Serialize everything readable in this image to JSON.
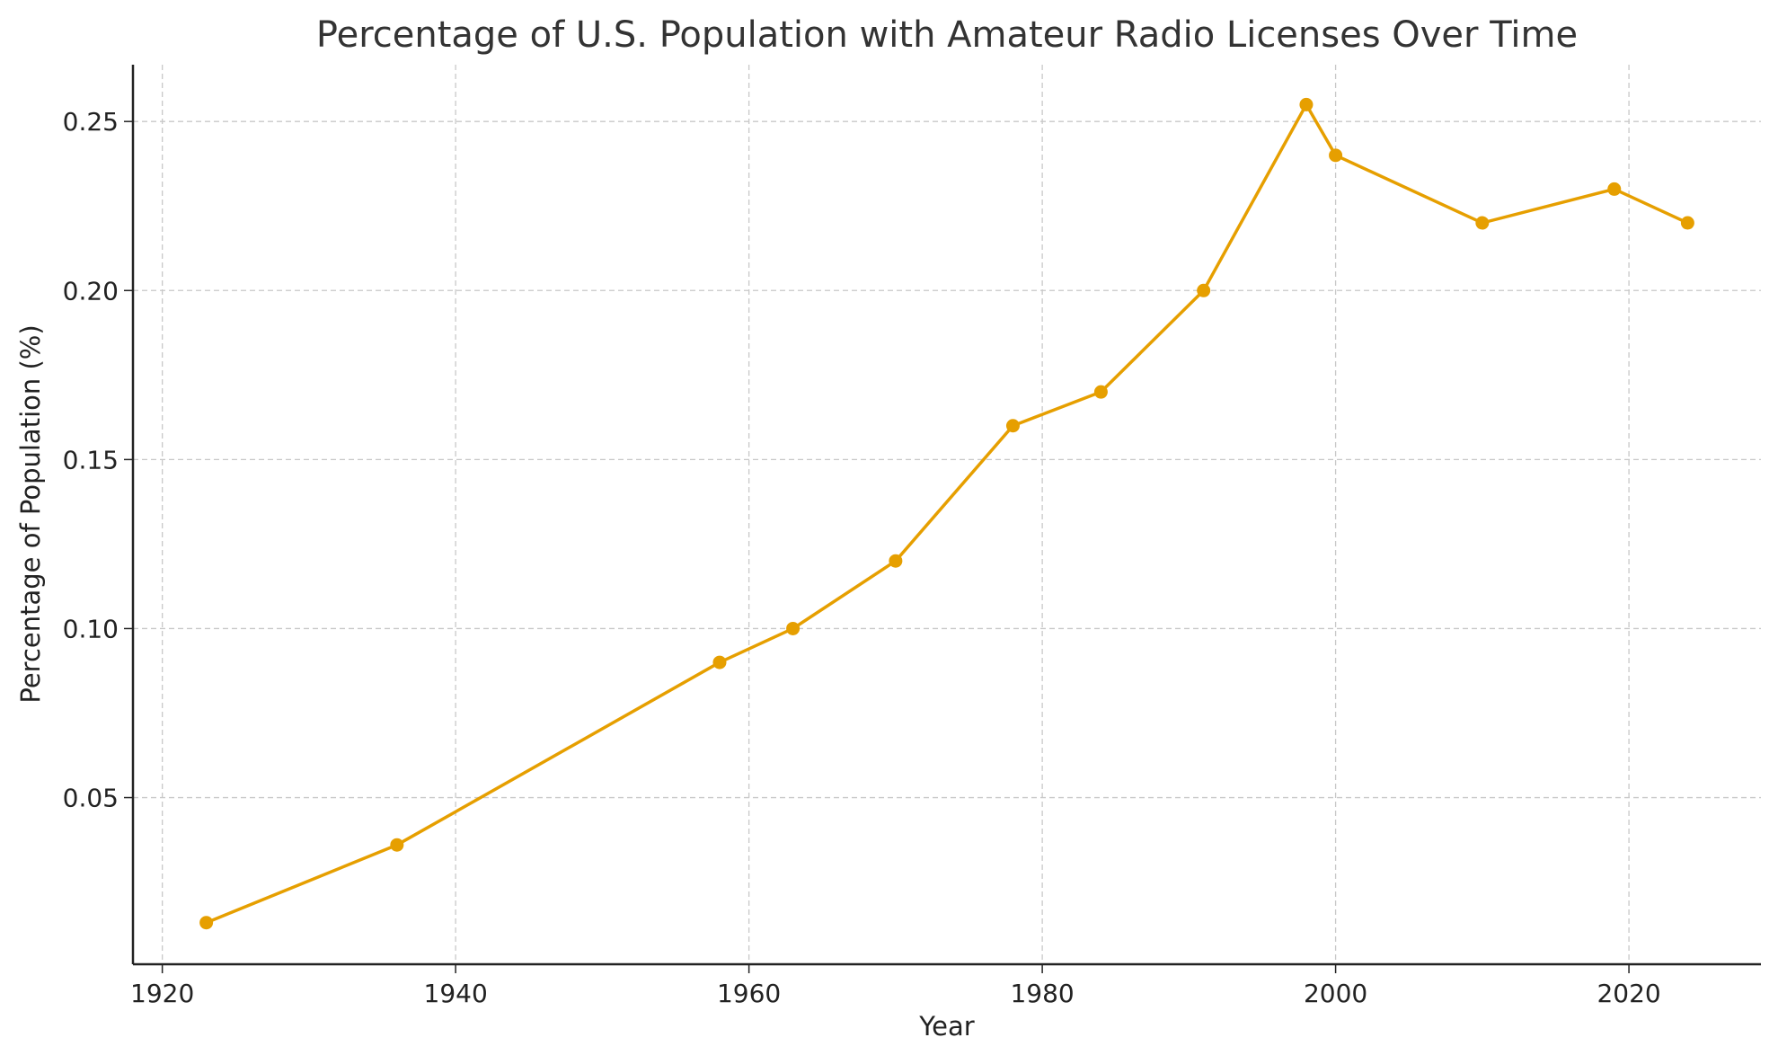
{
  "chart_data": {
    "type": "line",
    "title": "Percentage of U.S. Population with Amateur Radio Licenses Over Time",
    "xlabel": "Year",
    "ylabel": "Percentage of Population (%)",
    "x": [
      1923,
      1936,
      1958,
      1963,
      1970,
      1978,
      1984,
      1991,
      1998,
      2000,
      2010,
      2019,
      2024
    ],
    "values": [
      0.013,
      0.036,
      0.09,
      0.1,
      0.12,
      0.16,
      0.17,
      0.2,
      0.255,
      0.24,
      0.22,
      0.23,
      0.22
    ],
    "xlim": [
      1918,
      2029
    ],
    "ylim": [
      0.0007,
      0.2668
    ],
    "xticks": [
      1920,
      1940,
      1960,
      1980,
      2000,
      2020
    ],
    "xtick_labels": [
      "1920",
      "1940",
      "1960",
      "1980",
      "2000",
      "2020"
    ],
    "yticks": [
      0.05,
      0.1,
      0.15,
      0.2,
      0.25
    ],
    "ytick_labels": [
      "0.05",
      "0.10",
      "0.15",
      "0.20",
      "0.25"
    ],
    "grid": true,
    "marker": "circle",
    "line_color": "#E69F00"
  }
}
